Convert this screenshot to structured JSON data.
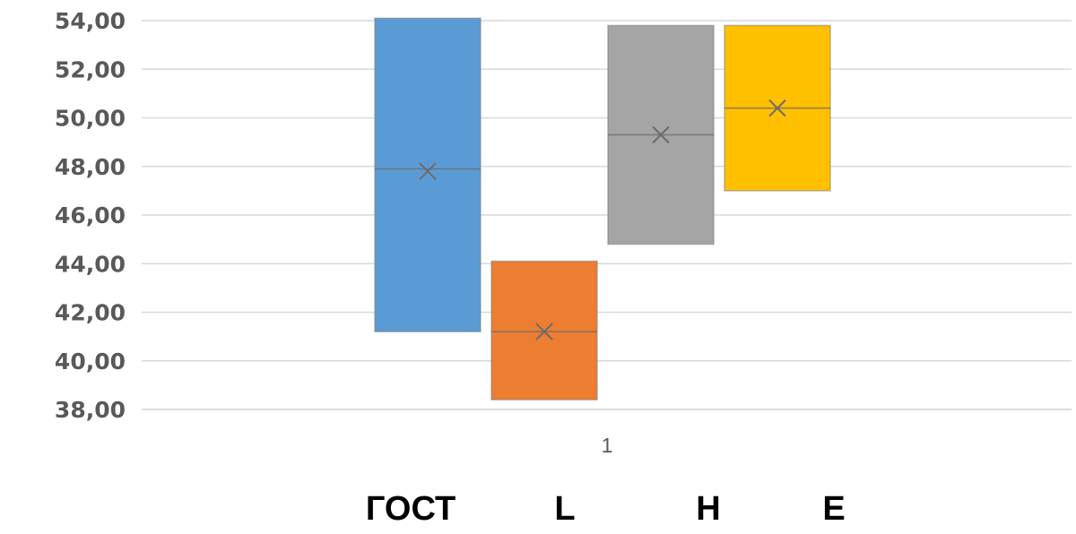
{
  "chart_data": {
    "type": "box",
    "title": "",
    "xlabel": "",
    "ylabel": "",
    "ylim": [
      38,
      54
    ],
    "y_ticks": [
      "38,00",
      "40,00",
      "42,00",
      "44,00",
      "46,00",
      "48,00",
      "50,00",
      "52,00",
      "54,00"
    ],
    "categories": [
      "1"
    ],
    "grid": true,
    "series": [
      {
        "name": "ГОСТ",
        "color": "#5B9BD5",
        "q1": 41.2,
        "median": 47.9,
        "mean": 47.8,
        "q3": 54.1
      },
      {
        "name": "L",
        "color": "#ED7D31",
        "q1": 38.4,
        "median": 41.2,
        "mean": 41.2,
        "q3": 44.1
      },
      {
        "name": "H",
        "color": "#A5A5A5",
        "q1": 44.8,
        "median": 49.3,
        "mean": 49.3,
        "q3": 53.8
      },
      {
        "name": "E",
        "color": "#FFC000",
        "q1": 47.0,
        "median": 50.4,
        "mean": 50.4,
        "q3": 53.8
      }
    ]
  }
}
